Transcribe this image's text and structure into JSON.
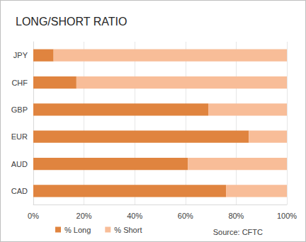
{
  "chart_data": {
    "type": "bar",
    "title": "LONG/SHORT RATIO",
    "orientation": "horizontal",
    "stacked": true,
    "categories": [
      "JPY",
      "CHF",
      "GBP",
      "EUR",
      "AUD",
      "CAD"
    ],
    "series": [
      {
        "name": "% Long",
        "color": "#e0843f",
        "values": [
          8,
          17,
          69,
          85,
          61,
          76
        ]
      },
      {
        "name": "% Short",
        "color": "#f8bd98",
        "values": [
          92,
          83,
          31,
          15,
          39,
          24
        ]
      }
    ],
    "xlim": [
      0,
      100
    ],
    "xticks": [
      {
        "value": 0,
        "label": "0%"
      },
      {
        "value": 20,
        "label": "20%"
      },
      {
        "value": 40,
        "label": "40%"
      },
      {
        "value": 60,
        "label": "60%"
      },
      {
        "value": 80,
        "label": "80%"
      },
      {
        "value": 100,
        "label": "100%"
      }
    ],
    "grid": true,
    "legend": "bottom-left",
    "annotations": [
      "Source: CFTC"
    ]
  }
}
